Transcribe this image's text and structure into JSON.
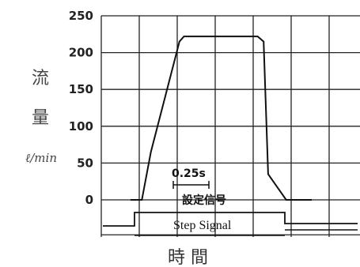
{
  "chart_data": {
    "type": "line",
    "title": "",
    "ylabel": {
      "chars": [
        "流",
        "量"
      ],
      "unit": "ℓ/min"
    },
    "xlabel": "時 間",
    "ylim": [
      0,
      250
    ],
    "yticks": [
      0,
      50,
      100,
      150,
      200,
      250
    ],
    "grid": true,
    "series": [
      {
        "values_t": [
          0.0,
          0.27,
          0.33,
          0.52,
          0.55,
          1.04,
          1.08,
          1.11,
          1.23,
          1.4
        ],
        "values_flow": [
          0,
          0,
          65,
          215,
          222,
          222,
          215,
          35,
          0,
          0
        ]
      }
    ],
    "step_signal": {
      "label": "Step Signal",
      "levels": [
        [
          0.0,
          "low"
        ],
        [
          0.25,
          "high"
        ],
        [
          1.05,
          "low"
        ],
        [
          1.6,
          "low"
        ]
      ]
    },
    "annotations": {
      "interval": "0.25s",
      "signal_jp": "設定信号"
    },
    "colors": {
      "line": "#111111",
      "grid": "#222222"
    }
  }
}
